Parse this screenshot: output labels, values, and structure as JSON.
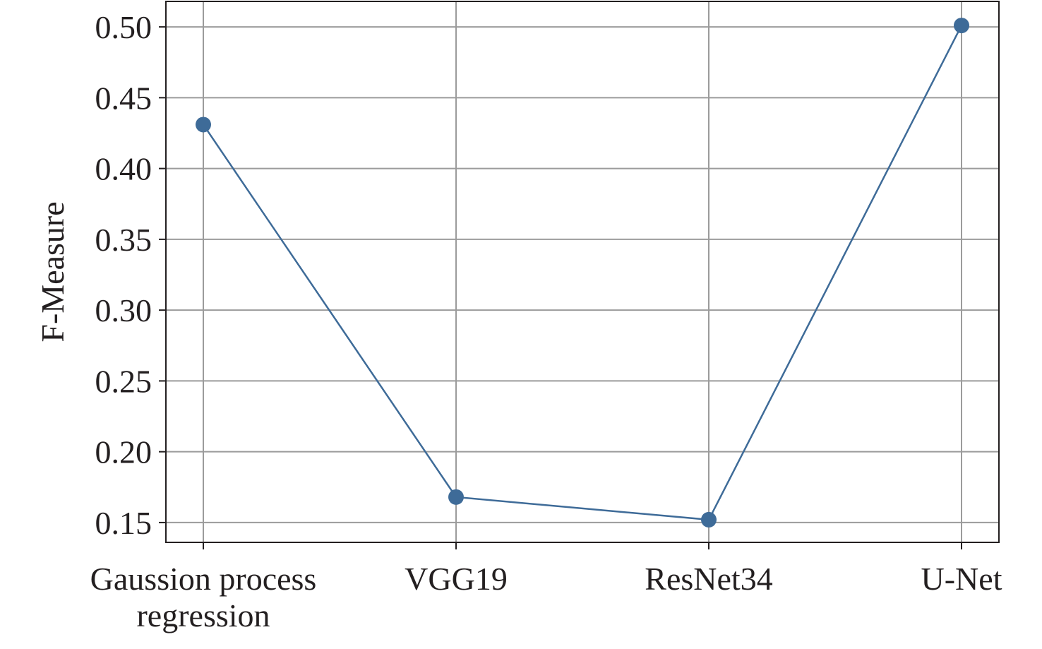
{
  "chart_data": {
    "type": "line",
    "categories": [
      [
        "Gaussion process",
        "regression"
      ],
      [
        "VGG19"
      ],
      [
        "ResNet34"
      ],
      [
        "U-Net"
      ]
    ],
    "values": [
      0.431,
      0.168,
      0.152,
      0.501
    ],
    "xlabel": "",
    "ylabel": "F-Measure",
    "ylim": [
      0.136,
      0.518
    ],
    "yticks": [
      "0.15",
      "0.20",
      "0.25",
      "0.30",
      "0.35",
      "0.40",
      "0.45",
      "0.50"
    ],
    "grid": true,
    "legend": "none",
    "colors": {
      "line": "#3e6b98",
      "marker": "#3e6b98",
      "grid": "#9b9b9b",
      "axis": "#231f20"
    }
  }
}
